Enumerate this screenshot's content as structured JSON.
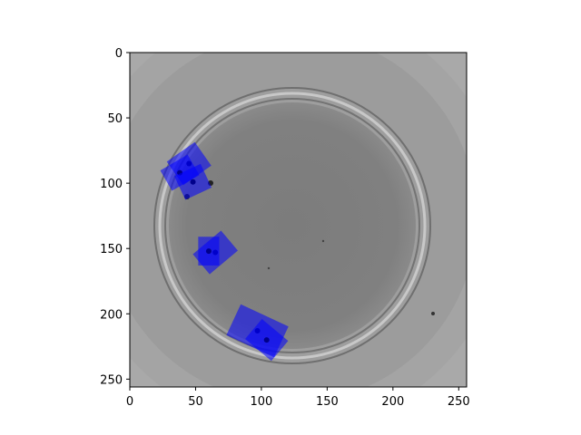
{
  "figure": {
    "x_ticks": [
      0,
      50,
      100,
      150,
      200,
      250
    ],
    "y_ticks": [
      0,
      50,
      100,
      150,
      200,
      250
    ],
    "x_range": [
      0,
      256
    ],
    "y_range": [
      256,
      0
    ],
    "x_tick_labels": [
      "0",
      "50",
      "100",
      "150",
      "200",
      "250"
    ],
    "y_tick_labels": [
      "0",
      "50",
      "100",
      "150",
      "200",
      "250"
    ],
    "image_subject": "grayscale top-down view of a circular petri dish with several small dark specimens highlighted by translucent blue box overlays",
    "overlay_color": "#0000ff"
  },
  "detections": [
    {
      "cx": 45,
      "cy": 85,
      "w": 26,
      "h": 22,
      "angle": -35
    },
    {
      "cx": 38,
      "cy": 92,
      "w": 24,
      "h": 18,
      "angle": -30
    },
    {
      "cx": 48,
      "cy": 99,
      "w": 22,
      "h": 20,
      "angle": -25
    },
    {
      "cx": 65,
      "cy": 153,
      "w": 28,
      "h": 20,
      "angle": -40
    },
    {
      "cx": 60,
      "cy": 152,
      "w": 16,
      "h": 22,
      "angle": 0
    },
    {
      "cx": 97,
      "cy": 213,
      "w": 40,
      "h": 26,
      "angle": 25
    },
    {
      "cx": 104,
      "cy": 220,
      "w": 26,
      "h": 20,
      "angle": 40
    }
  ]
}
